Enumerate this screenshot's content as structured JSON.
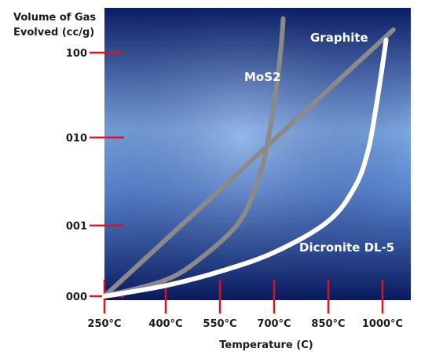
{
  "chart_data": {
    "type": "line",
    "title": "",
    "ylabel_lines": [
      "Volume of Gas",
      "Evolved (cc/g)"
    ],
    "xlabel": "Temperature (C)",
    "x_tick_labels": [
      "250°C",
      "400°C",
      "550°C",
      "700°C",
      "850°C",
      "1000°C"
    ],
    "y_tick_labels": [
      "000",
      "001",
      "010",
      "100"
    ],
    "x_scale": "categorical-temperature",
    "y_scale": "log",
    "grid": false,
    "legend": "none (inline series labels)",
    "series": [
      {
        "name": "Graphite",
        "color": "#8a8a8a",
        "points": [
          {
            "x": 250,
            "y": 0.0
          },
          {
            "x": 400,
            "y": 0.63
          },
          {
            "x": 550,
            "y": 1.2
          },
          {
            "x": 700,
            "y": 1.9
          },
          {
            "x": 850,
            "y": 2.55
          },
          {
            "x": 1000,
            "y": 3.2
          },
          {
            "x": 1030,
            "y": 3.27
          }
        ]
      },
      {
        "name": "MoS2",
        "color": "#8a8a8a",
        "points": [
          {
            "x": 250,
            "y": 0.0
          },
          {
            "x": 400,
            "y": 0.23
          },
          {
            "x": 500,
            "y": 0.55
          },
          {
            "x": 600,
            "y": 1.02
          },
          {
            "x": 650,
            "y": 1.45
          },
          {
            "x": 680,
            "y": 1.9
          },
          {
            "x": 705,
            "y": 2.55
          },
          {
            "x": 720,
            "y": 3.1
          },
          {
            "x": 725,
            "y": 3.4
          }
        ]
      },
      {
        "name": "Dicronite DL-5",
        "color": "#ffffff",
        "points": [
          {
            "x": 250,
            "y": 0.0
          },
          {
            "x": 400,
            "y": 0.15
          },
          {
            "x": 550,
            "y": 0.35
          },
          {
            "x": 700,
            "y": 0.62
          },
          {
            "x": 850,
            "y": 1.05
          },
          {
            "x": 925,
            "y": 1.45
          },
          {
            "x": 960,
            "y": 1.85
          },
          {
            "x": 980,
            "y": 2.3
          },
          {
            "x": 1000,
            "y": 2.85
          },
          {
            "x": 1010,
            "y": 3.15
          }
        ]
      }
    ]
  },
  "colors": {
    "plot_dark": "#0a1a5e",
    "plot_light": "#7aa6e0",
    "tick_marks": "#d8141a",
    "grey_series": "#8a8a8a",
    "white_series": "#ffffff",
    "text": "#1a1a1a"
  }
}
